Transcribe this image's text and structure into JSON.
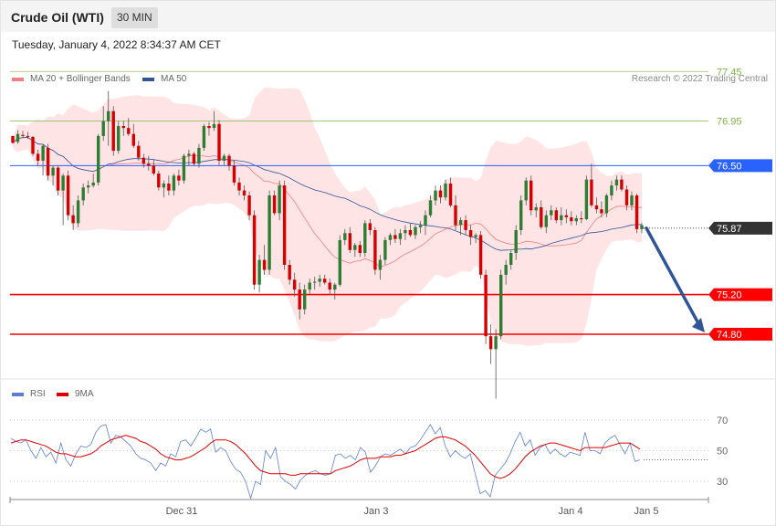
{
  "header": {
    "title": "Crude Oil (WTI)",
    "timeframe": "30 MIN"
  },
  "datetime": "Tuesday, January 4, 2022 8:34:37 AM CET",
  "legend": {
    "ma20": {
      "label": "MA 20 + Bollinger Bands",
      "color": "#f08080"
    },
    "ma50": {
      "label": "MA 50",
      "color": "#2f5597"
    }
  },
  "credit": "Research © 2022 Trading Central",
  "rsi_legend": {
    "rsi": {
      "label": "RSI",
      "color": "#5b7fd6"
    },
    "ma9": {
      "label": "9MA",
      "color": "#e00000"
    }
  },
  "chart_data": [
    {
      "type": "candlestick",
      "y_range": [
        74.1,
        77.6
      ],
      "levels": [
        {
          "value": 77.45,
          "label": "77.45",
          "kind": "target",
          "color": "#7cb342"
        },
        {
          "value": 76.95,
          "label": "76.95",
          "kind": "target",
          "color": "#7cb342"
        },
        {
          "value": 76.5,
          "label": "76.50",
          "kind": "pivot",
          "color": "#2962ff"
        },
        {
          "value": 75.87,
          "label": "75.87",
          "kind": "last-price",
          "color": "#333333"
        },
        {
          "value": 75.2,
          "label": "75.20",
          "kind": "support",
          "color": "#ff0000"
        },
        {
          "value": 74.8,
          "label": "74.80",
          "kind": "support",
          "color": "#ff0000"
        }
      ],
      "forecast_arrow": {
        "from": 75.87,
        "to": 74.8
      },
      "x_labels": [
        "Dec 31",
        "Jan 3",
        "Jan 4",
        "Jan 5"
      ],
      "candles": [
        [
          76.8,
          76.8,
          76.72,
          76.73
        ],
        [
          76.74,
          76.86,
          76.72,
          76.82
        ],
        [
          76.81,
          76.85,
          76.78,
          76.8
        ],
        [
          76.8,
          76.84,
          76.77,
          76.79
        ],
        [
          76.79,
          76.8,
          76.6,
          76.62
        ],
        [
          76.62,
          76.66,
          76.5,
          76.55
        ],
        [
          76.55,
          76.72,
          76.4,
          76.7
        ],
        [
          76.68,
          76.72,
          76.35,
          76.4
        ],
        [
          76.4,
          76.5,
          76.3,
          76.48
        ],
        [
          76.48,
          76.5,
          76.2,
          76.25
        ],
        [
          76.25,
          76.42,
          75.9,
          76.4
        ],
        [
          76.4,
          76.45,
          75.95,
          76.0
        ],
        [
          76.0,
          76.1,
          75.85,
          75.92
        ],
        [
          75.92,
          76.2,
          75.88,
          76.15
        ],
        [
          76.15,
          76.32,
          76.1,
          76.28
        ],
        [
          76.28,
          76.35,
          76.22,
          76.3
        ],
        [
          76.3,
          76.42,
          76.28,
          76.33
        ],
        [
          76.33,
          76.82,
          76.3,
          76.8
        ],
        [
          76.8,
          77.1,
          76.75,
          76.95
        ],
        [
          76.95,
          77.25,
          76.7,
          77.05
        ],
        [
          77.05,
          77.1,
          76.6,
          76.65
        ],
        [
          76.65,
          76.95,
          76.62,
          76.9
        ],
        [
          76.9,
          76.95,
          76.8,
          76.88
        ],
        [
          76.88,
          76.98,
          76.8,
          76.82
        ],
        [
          76.82,
          76.92,
          76.68,
          76.7
        ],
        [
          76.7,
          76.75,
          76.55,
          76.58
        ],
        [
          76.58,
          76.62,
          76.48,
          76.52
        ],
        [
          76.52,
          76.6,
          76.45,
          76.5
        ],
        [
          76.5,
          76.56,
          76.4,
          76.42
        ],
        [
          76.42,
          76.45,
          76.25,
          76.28
        ],
        [
          76.28,
          76.35,
          76.18,
          76.32
        ],
        [
          76.32,
          76.4,
          76.2,
          76.25
        ],
        [
          76.25,
          76.42,
          76.2,
          76.4
        ],
        [
          76.4,
          76.46,
          76.3,
          76.35
        ],
        [
          76.35,
          76.62,
          76.32,
          76.6
        ],
        [
          76.6,
          76.66,
          76.5,
          76.62
        ],
        [
          76.62,
          76.64,
          76.5,
          76.52
        ],
        [
          76.52,
          76.72,
          76.48,
          76.68
        ],
        [
          76.68,
          76.92,
          76.65,
          76.9
        ],
        [
          76.9,
          76.94,
          76.8,
          76.88
        ],
        [
          76.88,
          77.05,
          76.85,
          76.92
        ],
        [
          76.92,
          76.96,
          76.5,
          76.55
        ],
        [
          76.55,
          76.62,
          76.5,
          76.6
        ],
        [
          76.6,
          76.62,
          76.45,
          76.5
        ],
        [
          76.5,
          76.55,
          76.3,
          76.33
        ],
        [
          76.33,
          76.38,
          76.2,
          76.25
        ],
        [
          76.25,
          76.3,
          76.15,
          76.2
        ],
        [
          76.2,
          76.24,
          75.95,
          76.0
        ],
        [
          76.0,
          76.05,
          75.25,
          75.3
        ],
        [
          75.3,
          75.6,
          75.22,
          75.55
        ],
        [
          75.55,
          75.7,
          75.4,
          75.45
        ],
        [
          75.45,
          76.25,
          75.4,
          76.2
        ],
        [
          76.2,
          76.25,
          76.0,
          76.02
        ],
        [
          76.02,
          76.35,
          75.95,
          76.3
        ],
        [
          76.3,
          76.35,
          75.45,
          75.5
        ],
        [
          75.5,
          75.55,
          75.3,
          75.35
        ],
        [
          75.35,
          75.42,
          75.18,
          75.25
        ],
        [
          75.25,
          75.32,
          74.95,
          75.05
        ],
        [
          75.05,
          75.3,
          75.0,
          75.25
        ],
        [
          75.25,
          75.36,
          75.2,
          75.32
        ],
        [
          75.32,
          75.38,
          75.25,
          75.33
        ],
        [
          75.33,
          75.4,
          75.28,
          75.36
        ],
        [
          75.36,
          75.4,
          75.3,
          75.32
        ],
        [
          75.32,
          75.36,
          75.2,
          75.25
        ],
        [
          75.25,
          75.32,
          75.15,
          75.3
        ],
        [
          75.3,
          75.8,
          75.28,
          75.75
        ],
        [
          75.75,
          75.86,
          75.7,
          75.82
        ],
        [
          75.82,
          75.88,
          75.62,
          75.65
        ],
        [
          75.65,
          75.72,
          75.58,
          75.7
        ],
        [
          75.7,
          75.74,
          75.58,
          75.62
        ],
        [
          75.62,
          75.95,
          75.58,
          75.92
        ],
        [
          75.92,
          75.96,
          75.8,
          75.85
        ],
        [
          75.85,
          75.88,
          75.4,
          75.45
        ],
        [
          75.45,
          75.6,
          75.35,
          75.55
        ],
        [
          75.55,
          75.78,
          75.5,
          75.75
        ],
        [
          75.75,
          75.82,
          75.7,
          75.8
        ],
        [
          75.8,
          75.86,
          75.72,
          75.76
        ],
        [
          75.76,
          75.86,
          75.7,
          75.82
        ],
        [
          75.82,
          75.9,
          75.75,
          75.85
        ],
        [
          75.85,
          75.92,
          75.78,
          75.8
        ],
        [
          75.8,
          75.9,
          75.76,
          75.88
        ],
        [
          75.88,
          75.94,
          75.82,
          75.9
        ],
        [
          75.9,
          76.05,
          75.8,
          76.0
        ],
        [
          76.0,
          76.2,
          75.98,
          76.15
        ],
        [
          76.15,
          76.3,
          76.1,
          76.25
        ],
        [
          76.25,
          76.3,
          76.12,
          76.18
        ],
        [
          76.18,
          76.36,
          76.15,
          76.32
        ],
        [
          76.32,
          76.38,
          76.08,
          76.1
        ],
        [
          76.1,
          76.2,
          75.85,
          75.9
        ],
        [
          75.9,
          75.98,
          75.8,
          75.95
        ],
        [
          75.95,
          76.0,
          75.8,
          75.85
        ],
        [
          75.85,
          75.9,
          75.7,
          75.78
        ],
        [
          75.78,
          75.82,
          75.72,
          75.8
        ],
        [
          75.8,
          75.84,
          75.36,
          75.4
        ],
        [
          75.4,
          75.45,
          74.7,
          74.78
        ],
        [
          74.78,
          74.9,
          74.5,
          74.65
        ],
        [
          74.65,
          74.85,
          74.15,
          74.78
        ],
        [
          74.78,
          75.45,
          74.75,
          75.4
        ],
        [
          75.4,
          75.55,
          75.3,
          75.5
        ],
        [
          75.5,
          75.65,
          75.45,
          75.62
        ],
        [
          75.62,
          75.9,
          75.55,
          75.85
        ],
        [
          75.85,
          76.2,
          75.8,
          76.15
        ],
        [
          76.15,
          76.38,
          76.1,
          76.35
        ],
        [
          76.35,
          76.4,
          76.0,
          76.05
        ],
        [
          76.05,
          76.12,
          75.98,
          76.08
        ],
        [
          76.08,
          76.15,
          75.86,
          75.88
        ],
        [
          75.88,
          76.05,
          75.82,
          76.0
        ],
        [
          76.0,
          76.1,
          75.95,
          76.05
        ],
        [
          76.05,
          76.08,
          75.92,
          75.95
        ],
        [
          75.95,
          76.08,
          75.9,
          76.0
        ],
        [
          76.0,
          76.06,
          75.92,
          75.98
        ],
        [
          75.98,
          76.04,
          75.9,
          75.94
        ],
        [
          75.94,
          76.0,
          75.9,
          75.97
        ],
        [
          75.97,
          76.04,
          75.92,
          75.96
        ],
        [
          75.96,
          76.4,
          75.95,
          76.36
        ],
        [
          76.36,
          76.52,
          76.08,
          76.1
        ],
        [
          76.1,
          76.18,
          76.02,
          76.06
        ],
        [
          76.06,
          76.14,
          75.98,
          76.02
        ],
        [
          76.02,
          76.22,
          75.98,
          76.2
        ],
        [
          76.2,
          76.35,
          76.15,
          76.3
        ],
        [
          76.3,
          76.4,
          76.25,
          76.36
        ],
        [
          76.36,
          76.4,
          76.24,
          76.26
        ],
        [
          76.26,
          76.3,
          76.05,
          76.1
        ],
        [
          76.1,
          76.24,
          76.05,
          76.2
        ],
        [
          76.2,
          76.22,
          75.82,
          75.86
        ],
        [
          75.86,
          75.92,
          75.82,
          75.9
        ]
      ]
    },
    {
      "type": "line",
      "title": "RSI",
      "y_range": [
        20,
        80
      ],
      "y_ticks": [
        30,
        50,
        70
      ],
      "series": [
        {
          "name": "RSI",
          "color": "#5b7fd6",
          "values": [
            58,
            56,
            55,
            57,
            50,
            45,
            52,
            46,
            49,
            42,
            55,
            44,
            40,
            48,
            53,
            52,
            54,
            62,
            66,
            67,
            55,
            60,
            59,
            56,
            53,
            48,
            45,
            44,
            42,
            37,
            42,
            40,
            48,
            46,
            56,
            57,
            53,
            58,
            64,
            62,
            64,
            49,
            52,
            50,
            43,
            38,
            36,
            30,
            19,
            30,
            28,
            50,
            45,
            52,
            33,
            30,
            28,
            25,
            31,
            34,
            36,
            37,
            35,
            34,
            35,
            47,
            48,
            45,
            47,
            44,
            52,
            49,
            36,
            40,
            46,
            48,
            47,
            49,
            51,
            48,
            52,
            53,
            57,
            62,
            67,
            61,
            65,
            53,
            46,
            50,
            47,
            45,
            48,
            35,
            22,
            24,
            20,
            34,
            38,
            42,
            48,
            56,
            62,
            53,
            57,
            47,
            52,
            54,
            48,
            51,
            48,
            46,
            49,
            48,
            47,
            62,
            50,
            50,
            48,
            55,
            58,
            60,
            54,
            48,
            55,
            43,
            44
          ]
        },
        {
          "name": "9MA",
          "color": "#e00000",
          "values": [
            55,
            56,
            57,
            57,
            56,
            55,
            54,
            53,
            51,
            49,
            48,
            48,
            47,
            46,
            46,
            47,
            48,
            50,
            53,
            55,
            57,
            58,
            59,
            60,
            59,
            58,
            56,
            55,
            53,
            51,
            48,
            46,
            45,
            44,
            44,
            45,
            46,
            48,
            50,
            52,
            55,
            57,
            57,
            57,
            56,
            54,
            51,
            48,
            44,
            40,
            37,
            36,
            35,
            35,
            35,
            35,
            34,
            34,
            35,
            35,
            35,
            35,
            35,
            35,
            35,
            37,
            38,
            39,
            40,
            42,
            44,
            45,
            45,
            45,
            46,
            46,
            46,
            47,
            47,
            48,
            49,
            50,
            52,
            54,
            56,
            58,
            59,
            59,
            58,
            57,
            55,
            53,
            50,
            47,
            43,
            39,
            35,
            33,
            32,
            33,
            35,
            38,
            42,
            46,
            49,
            51,
            53,
            54,
            55,
            55,
            54,
            53,
            52,
            51,
            50,
            52,
            52,
            52,
            52,
            52,
            53,
            54,
            55,
            55,
            55,
            53,
            51
          ]
        }
      ]
    }
  ]
}
